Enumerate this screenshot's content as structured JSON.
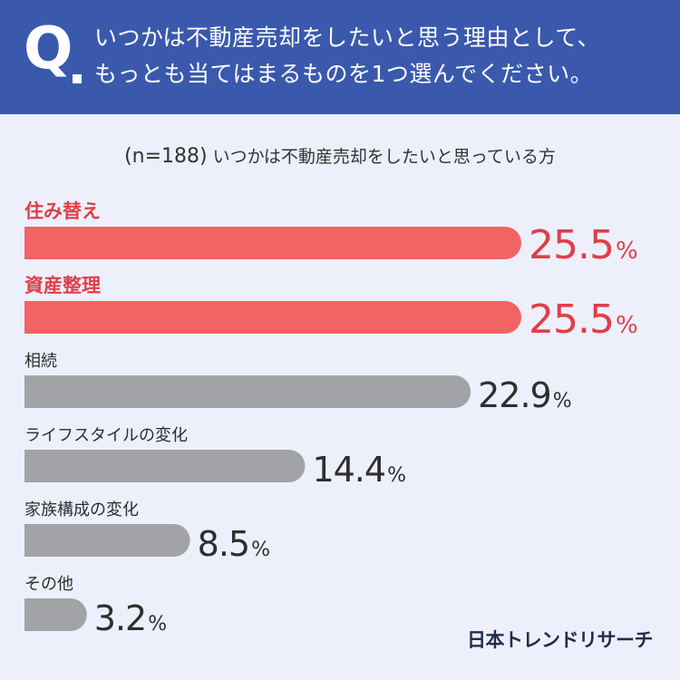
{
  "header": {
    "q_letter": "Q",
    "question_line1": "いつかは不動産売却をしたいと思う理由として、",
    "question_line2": "もっとも当てはまるものを1つ選んでください。"
  },
  "subtitle": {
    "n": "(n=188)",
    "text": "いつかは不動産売却をしたいと思っている方"
  },
  "logo": "日本トレンドリサーチ",
  "colors": {
    "header_bg": "#3a59ad",
    "highlight": "#f26464",
    "highlight_text": "#e03e4a",
    "normal_bar": "#a2a3a7",
    "normal_text": "#2e2e2e",
    "background": "#edf0fa"
  },
  "chart_data": {
    "type": "bar",
    "orientation": "horizontal",
    "categories": [
      "住み替え",
      "資産整理",
      "相続",
      "ライフスタイルの変化",
      "家族構成の変化",
      "その他"
    ],
    "values": [
      25.5,
      25.5,
      22.9,
      14.4,
      8.5,
      3.2
    ],
    "value_labels": [
      "25.5",
      "25.5",
      "22.9",
      "14.4",
      "8.5",
      "3.2"
    ],
    "unit": "%",
    "highlighted": [
      true,
      true,
      false,
      false,
      false,
      false
    ],
    "xlim": [
      0,
      25.5
    ]
  }
}
